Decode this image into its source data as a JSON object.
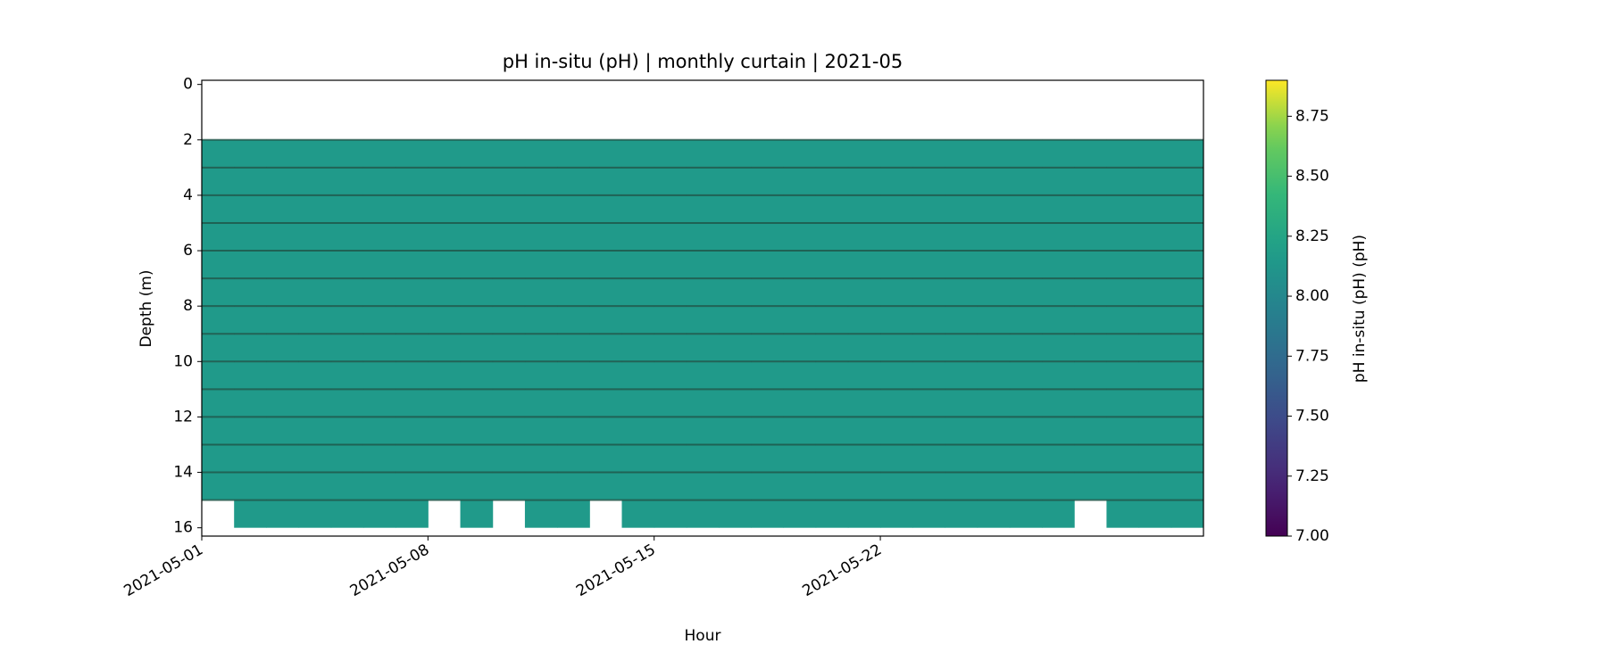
{
  "chart_data": {
    "type": "curtain",
    "title": "pH in-situ (pH) | monthly curtain | 2021-05",
    "xlabel": "Hour",
    "ylabel": "Depth (m)",
    "colorbar_label": "pH in-situ (pH) (pH)",
    "colormap": "viridis",
    "clim": [
      7,
      8.9
    ],
    "colorbar_ticks": [
      {
        "value": 7,
        "label": "7.00"
      },
      {
        "value": 7.25,
        "label": "7.25"
      },
      {
        "value": 7.5,
        "label": "7.50"
      },
      {
        "value": 7.75,
        "label": "7.75"
      },
      {
        "value": 8,
        "label": "8.00"
      },
      {
        "value": 8.25,
        "label": "8.25"
      },
      {
        "value": 8.5,
        "label": "8.50"
      },
      {
        "value": 8.75,
        "label": "8.75"
      }
    ],
    "xlim": [
      "2021-05-01",
      "2021-06-01"
    ],
    "xticks": [
      "2021-05-01",
      "2021-05-08",
      "2021-05-15",
      "2021-05-22"
    ],
    "ylim": [
      16.3,
      -0.15
    ],
    "yticks": [
      0,
      2,
      4,
      6,
      8,
      10,
      12,
      14,
      16
    ],
    "xbins": [
      "2021-05-01",
      "2021-05-02",
      "2021-05-03",
      "2021-05-04",
      "2021-05-05",
      "2021-05-06",
      "2021-05-07",
      "2021-05-08",
      "2021-05-09",
      "2021-05-10",
      "2021-05-11",
      "2021-05-12",
      "2021-05-13",
      "2021-05-14",
      "2021-05-15",
      "2021-05-16",
      "2021-05-17",
      "2021-05-18",
      "2021-05-19",
      "2021-05-20",
      "2021-05-21",
      "2021-05-22",
      "2021-05-23",
      "2021-05-24",
      "2021-05-25",
      "2021-05-26",
      "2021-05-27",
      "2021-05-28",
      "2021-05-29",
      "2021-05-30",
      "2021-05-31",
      "2021-06-01"
    ],
    "ybins": [
      2,
      3,
      4,
      5,
      6,
      7,
      8,
      9,
      10,
      11,
      12,
      13,
      14,
      15,
      16
    ],
    "values": [
      [
        8.15,
        8.15,
        8.15,
        8.15,
        8.15,
        8.15,
        8.15,
        8.15,
        8.15,
        8.15,
        8.15,
        8.15,
        8.15,
        8.15,
        8.15,
        8.15,
        8.15,
        8.15,
        8.15,
        8.15,
        8.15,
        8.15,
        8.15,
        8.15,
        8.15,
        8.15,
        8.15,
        8.15,
        8.15,
        8.15,
        8.15
      ],
      [
        8.15,
        8.15,
        8.15,
        8.15,
        8.15,
        8.15,
        8.15,
        8.15,
        8.15,
        8.15,
        8.15,
        8.15,
        8.15,
        8.15,
        8.15,
        8.15,
        8.15,
        8.15,
        8.15,
        8.15,
        8.15,
        8.15,
        8.15,
        8.15,
        8.15,
        8.15,
        8.15,
        8.15,
        8.15,
        8.15,
        8.15
      ],
      [
        8.15,
        8.15,
        8.15,
        8.15,
        8.15,
        8.15,
        8.15,
        8.15,
        8.15,
        8.15,
        8.15,
        8.15,
        8.15,
        8.15,
        8.15,
        8.15,
        8.15,
        8.15,
        8.15,
        8.15,
        8.15,
        8.15,
        8.15,
        8.15,
        8.15,
        8.15,
        8.15,
        8.15,
        8.15,
        8.15,
        8.15
      ],
      [
        8.15,
        8.15,
        8.15,
        8.15,
        8.15,
        8.15,
        8.15,
        8.15,
        8.15,
        8.15,
        8.15,
        8.15,
        8.15,
        8.15,
        8.15,
        8.15,
        8.15,
        8.15,
        8.15,
        8.15,
        8.15,
        8.15,
        8.15,
        8.15,
        8.15,
        8.15,
        8.15,
        8.15,
        8.15,
        8.15,
        8.15
      ],
      [
        8.15,
        8.15,
        8.15,
        8.15,
        8.15,
        8.15,
        8.15,
        8.15,
        8.15,
        8.15,
        8.15,
        8.15,
        8.15,
        8.15,
        8.15,
        8.15,
        8.15,
        8.15,
        8.15,
        8.15,
        8.15,
        8.15,
        8.15,
        8.15,
        8.15,
        8.15,
        8.15,
        8.15,
        8.15,
        8.15,
        8.15
      ],
      [
        8.15,
        8.15,
        8.15,
        8.15,
        8.15,
        8.15,
        8.15,
        8.15,
        8.15,
        8.15,
        8.15,
        8.15,
        8.15,
        8.15,
        8.15,
        8.15,
        8.15,
        8.15,
        8.15,
        8.15,
        8.15,
        8.15,
        8.15,
        8.15,
        8.15,
        8.15,
        8.15,
        8.15,
        8.15,
        8.15,
        8.15
      ],
      [
        8.15,
        8.15,
        8.15,
        8.15,
        8.15,
        8.15,
        8.15,
        8.15,
        8.15,
        8.15,
        8.15,
        8.15,
        8.15,
        8.15,
        8.15,
        8.15,
        8.15,
        8.15,
        8.15,
        8.15,
        8.15,
        8.15,
        8.15,
        8.15,
        8.15,
        8.15,
        8.15,
        8.15,
        8.15,
        8.15,
        8.15
      ],
      [
        8.15,
        8.15,
        8.15,
        8.15,
        8.15,
        8.15,
        8.15,
        8.15,
        8.15,
        8.15,
        8.15,
        8.15,
        8.15,
        8.15,
        8.15,
        8.15,
        8.15,
        8.15,
        8.15,
        8.15,
        8.15,
        8.15,
        8.15,
        8.15,
        8.15,
        8.15,
        8.15,
        8.15,
        8.15,
        8.15,
        8.15
      ],
      [
        8.15,
        8.15,
        8.15,
        8.15,
        8.15,
        8.15,
        8.15,
        8.15,
        8.15,
        8.15,
        8.15,
        8.15,
        8.15,
        8.15,
        8.15,
        8.15,
        8.15,
        8.15,
        8.15,
        8.15,
        8.15,
        8.15,
        8.15,
        8.15,
        8.15,
        8.15,
        8.15,
        8.15,
        8.15,
        8.15,
        8.15
      ],
      [
        8.15,
        8.15,
        8.15,
        8.15,
        8.15,
        8.15,
        8.15,
        8.15,
        8.15,
        8.15,
        8.15,
        8.15,
        8.15,
        8.15,
        8.15,
        8.15,
        8.15,
        8.15,
        8.15,
        8.15,
        8.15,
        8.15,
        8.15,
        8.15,
        8.15,
        8.15,
        8.15,
        8.15,
        8.15,
        8.15,
        8.15
      ],
      [
        8.15,
        8.15,
        8.15,
        8.15,
        8.15,
        8.15,
        8.15,
        8.15,
        8.15,
        8.15,
        8.15,
        8.15,
        8.15,
        8.15,
        8.15,
        8.15,
        8.15,
        8.15,
        8.15,
        8.15,
        8.15,
        8.15,
        8.15,
        8.15,
        8.15,
        8.15,
        8.15,
        8.15,
        8.15,
        8.15,
        8.15
      ],
      [
        8.15,
        8.15,
        8.15,
        8.15,
        8.15,
        8.15,
        8.15,
        8.15,
        8.15,
        8.15,
        8.15,
        8.15,
        8.15,
        8.15,
        8.15,
        8.15,
        8.15,
        8.15,
        8.15,
        8.15,
        8.15,
        8.15,
        8.15,
        8.15,
        8.15,
        8.15,
        8.15,
        8.15,
        8.15,
        8.15,
        8.15
      ],
      [
        8.15,
        8.15,
        8.15,
        8.15,
        8.15,
        8.15,
        8.15,
        8.15,
        8.15,
        8.15,
        8.15,
        8.15,
        8.15,
        8.15,
        8.15,
        8.15,
        8.15,
        8.15,
        8.15,
        8.15,
        8.15,
        8.15,
        8.15,
        8.15,
        8.15,
        8.15,
        8.15,
        8.15,
        8.15,
        8.15,
        8.15
      ],
      [
        null,
        8.15,
        8.15,
        8.15,
        8.15,
        8.15,
        8.15,
        null,
        8.15,
        null,
        8.15,
        8.15,
        null,
        8.15,
        8.15,
        8.15,
        8.15,
        8.15,
        8.15,
        8.15,
        8.15,
        8.15,
        8.15,
        8.15,
        8.15,
        8.15,
        8.15,
        null,
        8.15,
        8.15,
        8.15
      ]
    ],
    "contour_depths": [
      2,
      3,
      4,
      5,
      6,
      7,
      8,
      9,
      10,
      11,
      12,
      13,
      14,
      15
    ],
    "contour_color": "#1e4d42"
  }
}
